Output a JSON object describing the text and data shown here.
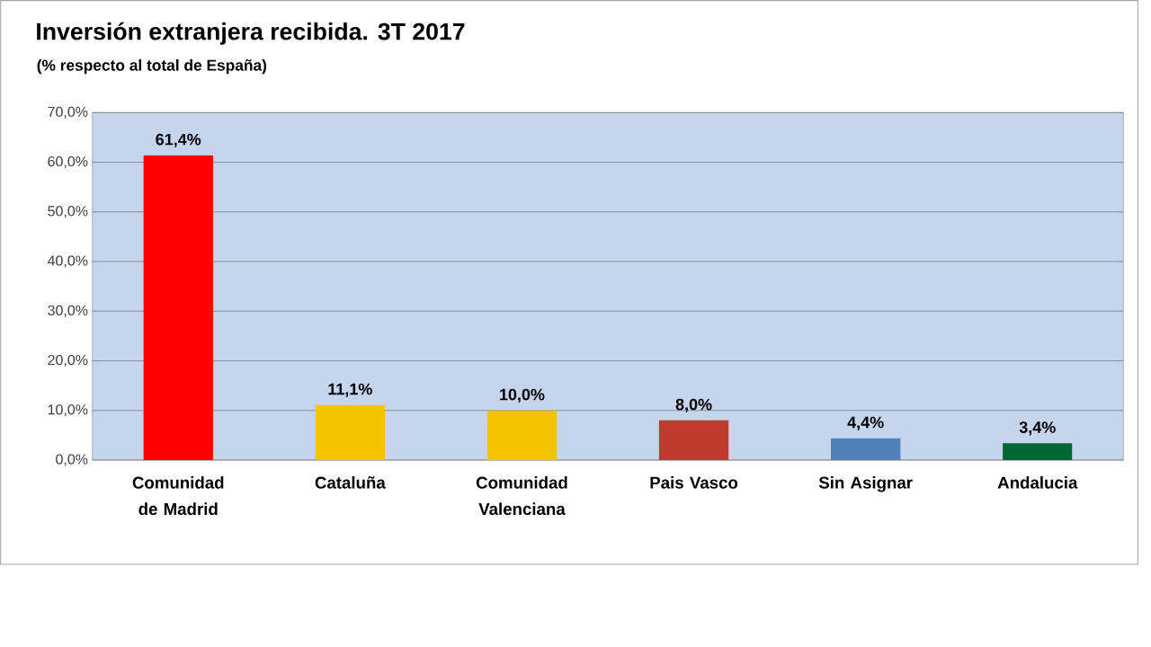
{
  "chart_data": {
    "type": "bar",
    "title": "Inversión extranjera recibida. 3T 2017",
    "subtitle": "(% respecto al total de España)",
    "categories": [
      "Comunidad de Madrid",
      "Cataluña",
      "Comunidad Valenciana",
      "Pais Vasco",
      "Sin Asignar",
      "Andalucia"
    ],
    "values": [
      61.4,
      11.1,
      10.0,
      8.0,
      4.4,
      3.4
    ],
    "value_labels": [
      "61,4%",
      "11,1%",
      "10,0%",
      "8,0%",
      "4,4%",
      "3,4%"
    ],
    "colors": [
      "#ff0000",
      "#f5c400",
      "#f5c400",
      "#c0392b",
      "#4f81bd",
      "#006633"
    ],
    "ylim": [
      0,
      70
    ],
    "yticks": [
      {
        "value": 0,
        "label": "0,0%"
      },
      {
        "value": 10,
        "label": "10,0%"
      },
      {
        "value": 20,
        "label": "20,0%"
      },
      {
        "value": 30,
        "label": "30,0%"
      },
      {
        "value": 40,
        "label": "40,0%"
      },
      {
        "value": 50,
        "label": "50,0%"
      },
      {
        "value": 60,
        "label": "60,0%"
      },
      {
        "value": 70,
        "label": "70,0%"
      }
    ],
    "grid": "y"
  }
}
